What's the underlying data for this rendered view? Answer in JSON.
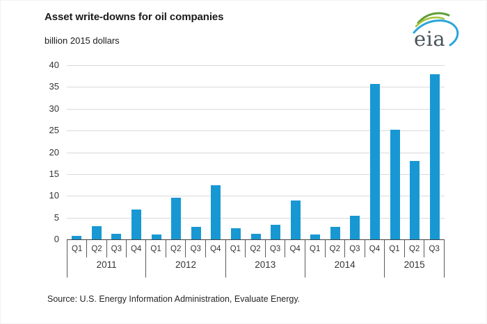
{
  "header": {
    "title": "Asset write-downs for oil companies",
    "subtitle": "billion 2015 dollars",
    "logo_text": "eia"
  },
  "source_line": "Source:  U.S. Energy Information Administration, Evaluate Energy.",
  "colors": {
    "bar": "#1898d3",
    "gridline": "#d9d9d9",
    "axis_line": "#595959",
    "text": "#333333",
    "logo_blue": "#2aa5dc",
    "logo_green": "#5f9e36",
    "logo_light_green": "#a6c33d"
  },
  "chart_data": {
    "type": "bar",
    "title": "Asset write-downs for oil companies",
    "subtitle": "billion 2015 dollars",
    "xlabel": "",
    "ylabel": "billion 2015 dollars",
    "ylim": [
      0,
      40
    ],
    "ytick_step": 5,
    "yticks": [
      40,
      35,
      30,
      25,
      20,
      15,
      10,
      5,
      0
    ],
    "grid": true,
    "legend": "none",
    "groups": [
      {
        "year": "2011",
        "quarters": [
          "Q1",
          "Q2",
          "Q3",
          "Q4"
        ],
        "values": [
          0.8,
          3.1,
          1.2,
          6.8
        ]
      },
      {
        "year": "2012",
        "quarters": [
          "Q1",
          "Q2",
          "Q3",
          "Q4"
        ],
        "values": [
          1.1,
          9.5,
          2.8,
          12.5
        ]
      },
      {
        "year": "2013",
        "quarters": [
          "Q1",
          "Q2",
          "Q3",
          "Q4"
        ],
        "values": [
          2.6,
          1.3,
          3.4,
          9.0
        ]
      },
      {
        "year": "2014",
        "quarters": [
          "Q1",
          "Q2",
          "Q3",
          "Q4"
        ],
        "values": [
          1.1,
          2.9,
          5.4,
          35.7
        ]
      },
      {
        "year": "2015",
        "quarters": [
          "Q1",
          "Q2",
          "Q3"
        ],
        "values": [
          25.2,
          18.0,
          38.0
        ]
      }
    ]
  }
}
